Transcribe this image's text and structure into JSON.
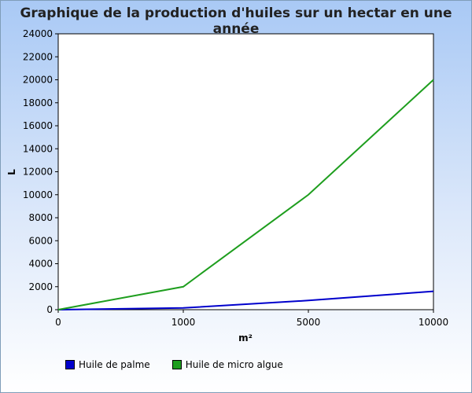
{
  "chart_data": {
    "type": "line",
    "title": "Graphique de la production d'huiles sur un hectar en une année",
    "xlabel": "m²",
    "ylabel": "L",
    "categories": [
      "0",
      "1000",
      "5000",
      "10000"
    ],
    "ylim": [
      0,
      24000
    ],
    "yticks": [
      0,
      2000,
      4000,
      6000,
      8000,
      10000,
      12000,
      14000,
      16000,
      18000,
      20000,
      22000,
      24000
    ],
    "series": [
      {
        "name": "Huile de palme",
        "color": "#0000cc",
        "values": [
          0,
          150,
          800,
          1600
        ]
      },
      {
        "name": "Huile de micro algue",
        "color": "#1e9e1e",
        "values": [
          0,
          2000,
          10000,
          20000
        ]
      }
    ],
    "legend": "bottom-left",
    "grid": false
  }
}
